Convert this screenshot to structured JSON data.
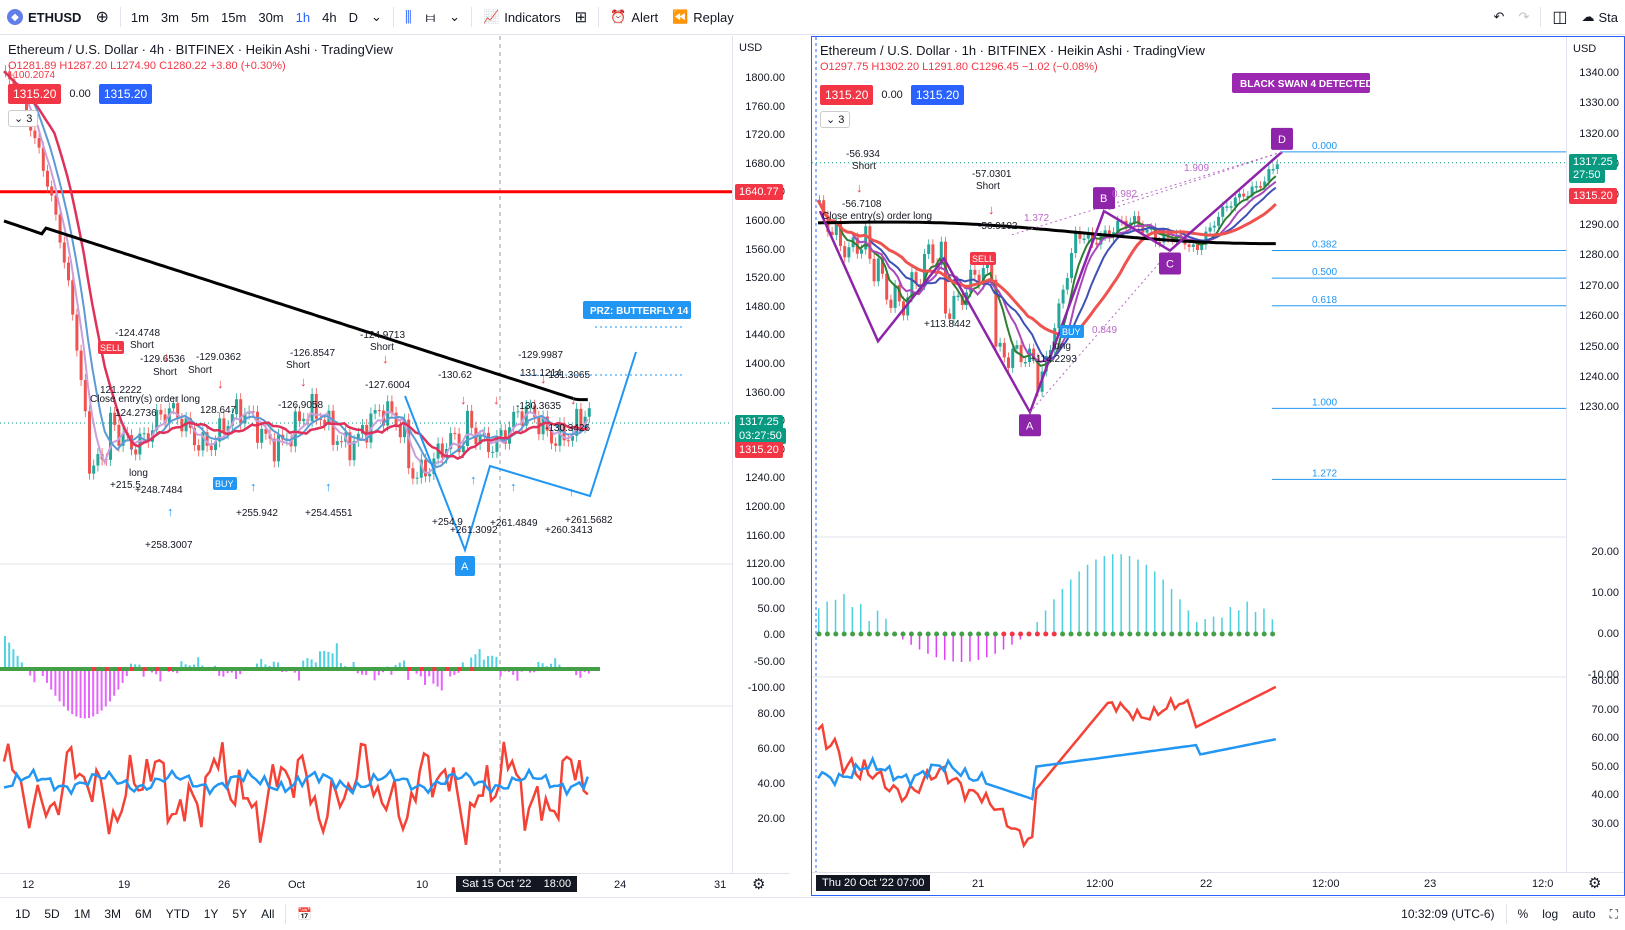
{
  "toolbar": {
    "symbol": "ETHUSD",
    "timeframes": [
      "1m",
      "3m",
      "5m",
      "15m",
      "30m",
      "1h",
      "4h",
      "D"
    ],
    "active_timeframe": "1h",
    "indicators_label": "Indicators",
    "alert_label": "Alert",
    "replay_label": "Replay",
    "right_cut_label": "Sta"
  },
  "left_chart": {
    "title": "Ethereum / U.S. Dollar · 4h · BITFINEX · Heikin Ashi · TradingView",
    "ohlc": "O1281.89 H1287.20 L1274.90 C1280.22 +3.80 (+0.30%)",
    "sub_value": "-100.2074",
    "price_red": "1315.20",
    "price_zero": "0.00",
    "price_blue": "1315.20",
    "collapse_count": "3",
    "currency": "USD",
    "price_labels": [
      "1800.00",
      "1760.00",
      "1720.00",
      "1680.00",
      "1640.00",
      "1600.00",
      "1560.00",
      "1520.00",
      "1480.00",
      "1440.00",
      "1400.00",
      "1360.00",
      "1320.00",
      "1280.00",
      "1240.00",
      "1200.00",
      "1160.00",
      "1120.00"
    ],
    "hline_tag": "1640.77",
    "current_tag": "1317.25",
    "current_timer": "03:27:50",
    "ma_tag": "1315.20",
    "osc_labels": [
      "100.00",
      "50.00",
      "0.00",
      "-50.00",
      "-100.00"
    ],
    "rsi_labels": [
      "80.00",
      "60.00",
      "40.00",
      "20.00"
    ],
    "x_labels": [
      "12",
      "19",
      "26",
      "Oct",
      "10",
      "24",
      "31"
    ],
    "x_highlight_date": "Sat 15 Oct '22",
    "x_highlight_time": "18:00",
    "prz_label": "PRZ: BUTTERFLY 14",
    "point_a_label": "A",
    "annotations": [
      {
        "text": "-124.4748"
      },
      {
        "text": "Short"
      },
      {
        "text": "-129.6536"
      },
      {
        "text": "Short"
      },
      {
        "text": "-129.0362"
      },
      {
        "text": "Short"
      },
      {
        "text": "-126.8547"
      },
      {
        "text": "Short"
      },
      {
        "text": "-124.9713"
      },
      {
        "text": "Short"
      },
      {
        "text": "-127.6004"
      },
      {
        "text": "-126.9058"
      },
      {
        "text": "-130.62"
      },
      {
        "text": "131.1214"
      },
      {
        "text": "-129.9987"
      },
      {
        "text": "-131.3065"
      },
      {
        "text": "-130.3635"
      },
      {
        "text": "-130.3426"
      },
      {
        "text": "121.2222"
      },
      {
        "text": "124.2736"
      },
      {
        "text": "128.647"
      },
      {
        "text": "Close entry(s) order long"
      },
      {
        "text": "+215.5"
      },
      {
        "text": "+248.7484"
      },
      {
        "text": "+258.3007"
      },
      {
        "text": "+255.942"
      },
      {
        "text": "+254.4551"
      },
      {
        "text": "+254.9"
      },
      {
        "text": "+261.3092"
      },
      {
        "text": "+261.4849"
      },
      {
        "text": "+260.3413"
      },
      {
        "text": "+261.5682"
      },
      {
        "text": "long"
      },
      {
        "text": "SELL"
      },
      {
        "text": "BUY"
      }
    ]
  },
  "right_chart": {
    "title": "Ethereum / U.S. Dollar · 1h · BITFINEX · Heikin Ashi · TradingView",
    "ohlc": "O1297.75 H1302.20 L1291.80 C1296.45 −1.02 (−0.08%)",
    "price_red": "1315.20",
    "price_zero": "0.00",
    "price_blue": "1315.20",
    "collapse_count": "3",
    "currency": "USD",
    "price_labels": [
      "1340.00",
      "1330.00",
      "1320.00",
      "1310.00",
      "1300.00",
      "1290.00",
      "1280.00",
      "1270.00",
      "1260.00",
      "1250.00",
      "1240.00",
      "1230.00"
    ],
    "current_tag": "1317.25",
    "current_timer": "27:50",
    "ma_tag": "1315.20",
    "osc_labels": [
      "20.00",
      "10.00",
      "0.00",
      "-10.00"
    ],
    "rsi_labels": [
      "80.00",
      "70.00",
      "60.00",
      "50.00",
      "40.00",
      "30.00"
    ],
    "x_labels": [
      "21",
      "12:00",
      "22",
      "12:00",
      "23",
      "12:0"
    ],
    "x_highlight": "Thu 20 Oct '22   07:00",
    "black_swan_label": "BLACK SWAN 4 DETECTED",
    "points": {
      "a": "A",
      "b": "B",
      "c": "C",
      "d": "D"
    },
    "fib_levels": [
      "0.000",
      "0.382",
      "0.500",
      "0.618",
      "1.000",
      "1.272"
    ],
    "ratios": [
      "1.909",
      "1.372",
      "0.849",
      "0.982"
    ],
    "annotations": [
      {
        "text": "-56.934"
      },
      {
        "text": "Short"
      },
      {
        "text": "-56.7108"
      },
      {
        "text": "-57.0301"
      },
      {
        "text": "Short"
      },
      {
        "text": "-56.9102"
      },
      {
        "text": "Close entry(s) order long"
      },
      {
        "text": "+113.8442"
      },
      {
        "text": "+114.2293"
      },
      {
        "text": "long"
      },
      {
        "text": "BUY"
      },
      {
        "text": "SELL"
      }
    ]
  },
  "bottombar": {
    "ranges": [
      "1D",
      "5D",
      "1M",
      "3M",
      "6M",
      "YTD",
      "1Y",
      "5Y",
      "All"
    ],
    "clock": "10:32:09 (UTC-6)",
    "pct": "%",
    "log": "log",
    "auto": "auto"
  }
}
